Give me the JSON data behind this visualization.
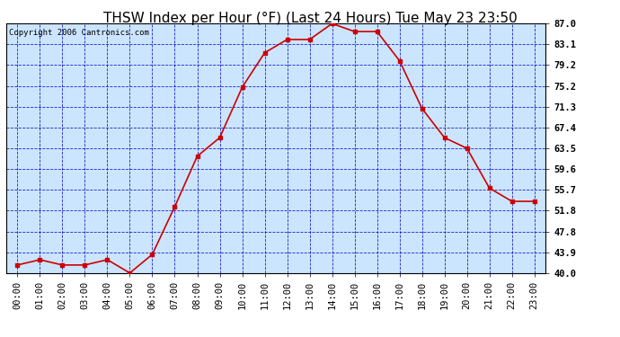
{
  "title": "THSW Index per Hour (°F) (Last 24 Hours) Tue May 23 23:50",
  "copyright": "Copyright 2006 Cantronics.com",
  "x_labels": [
    "00:00",
    "01:00",
    "02:00",
    "03:00",
    "04:00",
    "05:00",
    "06:00",
    "07:00",
    "08:00",
    "09:00",
    "10:00",
    "11:00",
    "12:00",
    "13:00",
    "14:00",
    "15:00",
    "16:00",
    "17:00",
    "18:00",
    "19:00",
    "20:00",
    "21:00",
    "22:00",
    "23:00"
  ],
  "y_values": [
    41.5,
    42.5,
    41.5,
    41.5,
    42.5,
    40.0,
    43.5,
    52.5,
    62.0,
    65.5,
    75.0,
    81.5,
    84.0,
    84.0,
    87.0,
    85.5,
    85.5,
    80.0,
    71.0,
    65.5,
    63.5,
    56.0,
    53.5,
    53.5
  ],
  "y_ticks": [
    40.0,
    43.9,
    47.8,
    51.8,
    55.7,
    59.6,
    63.5,
    67.4,
    71.3,
    75.2,
    79.2,
    83.1,
    87.0
  ],
  "y_min": 40.0,
  "y_max": 87.0,
  "line_color": "#cc0000",
  "marker_color": "#cc0000",
  "bg_color": "#cce5ff",
  "grid_color": "#0000bb",
  "title_fontsize": 11,
  "copyright_fontsize": 6.5,
  "tick_fontsize": 7.5
}
